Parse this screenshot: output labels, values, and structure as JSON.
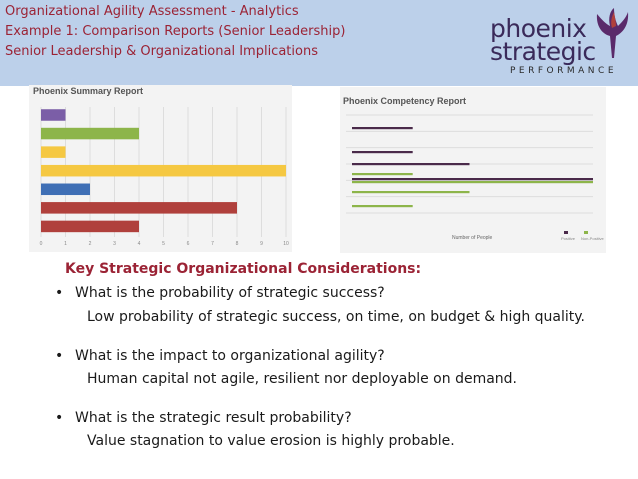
{
  "header": {
    "lines": [
      "Organizational Agility Assessment - Analytics",
      "Example 1:  Comparison Reports (Senior Leadership)",
      "Senior Leadership & Organizational Implications"
    ]
  },
  "logo": {
    "word1": "phoenix",
    "word2": "strategic",
    "sub": "PERFORMANCE"
  },
  "summary_chart": {
    "title": "Phoenix Summary Report"
  },
  "competency_chart": {
    "title": "Phoenix Competency Report"
  },
  "chart_data": [
    {
      "type": "bar",
      "orientation": "horizontal",
      "title": "Phoenix Summary Report",
      "x_ticks": [
        "0",
        "1",
        "2",
        "3",
        "4",
        "5",
        "6",
        "7",
        "8",
        "9",
        "10"
      ],
      "xlim": [
        0,
        10
      ],
      "grid": true,
      "bars": [
        {
          "value": 1,
          "color": "#7b5ea7"
        },
        {
          "value": 4,
          "color": "#8db54a"
        },
        {
          "value": 1,
          "color": "#f5c842"
        },
        {
          "value": 10,
          "color": "#f5c842"
        },
        {
          "value": 2,
          "color": "#3f6fb5"
        },
        {
          "value": 8,
          "color": "#b0403c"
        },
        {
          "value": 4,
          "color": "#b0403c"
        }
      ]
    },
    {
      "type": "bar",
      "orientation": "horizontal",
      "title": "Phoenix Competency Report",
      "xlabel": "Number of People",
      "xlim": [
        0,
        10
      ],
      "grid": true,
      "series": [
        {
          "name": "Positive",
          "color": "#4a2a4a"
        },
        {
          "name": "Non-Positive",
          "color": "#8db54a"
        }
      ],
      "bars": [
        {
          "series": 0,
          "value": 2.7
        },
        {
          "series": 0,
          "value": 2.7
        },
        {
          "series": 0,
          "value": 5.0
        },
        {
          "series": 1,
          "value": 2.7
        },
        {
          "series": 0,
          "value": 10.0
        },
        {
          "series": 1,
          "value": 10.0
        },
        {
          "series": 1,
          "value": 5.0
        },
        {
          "series": 1,
          "value": 2.7
        }
      ]
    }
  ],
  "considerations": {
    "heading": "Key Strategic Organizational Considerations:",
    "items": [
      {
        "question": "What is the probability of strategic success?",
        "answer": "Low probability of strategic success, on time, on budget & high quality."
      },
      {
        "question": "What is the impact to organizational agility?",
        "answer": "Human capital not agile, resilient nor deployable on demand."
      },
      {
        "question": "What is the strategic result probability?",
        "answer": "Value stagnation to value erosion is highly probable."
      }
    ]
  }
}
